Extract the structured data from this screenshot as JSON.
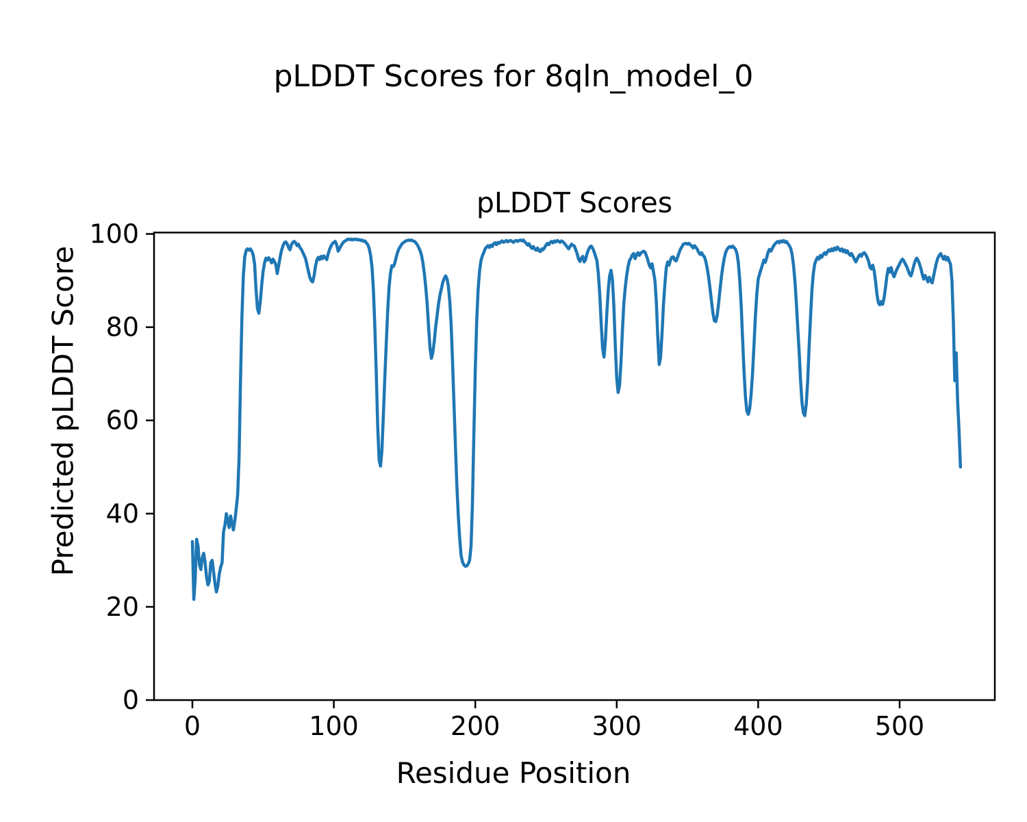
{
  "figure": {
    "suptitle": "pLDDT Scores for 8qln_model_0",
    "background_color": "#ffffff",
    "text_color": "#000000"
  },
  "chart_data": {
    "type": "line",
    "title": "pLDDT Scores",
    "xlabel": "Residue Position",
    "ylabel": "Predicted pLDDT Score",
    "xlim": [
      -27.1,
      567.3
    ],
    "ylim": [
      0,
      100.3
    ],
    "xticks": [
      0,
      100,
      200,
      300,
      400,
      500
    ],
    "yticks": [
      0,
      20,
      40,
      60,
      80,
      100
    ],
    "grid": false,
    "legend": null,
    "series": [
      {
        "name": "pLDDT",
        "color": "#1f77b4",
        "x_start": 0,
        "x_step": 1,
        "y": [
          34,
          21.6,
          26,
          34.5,
          33,
          29,
          28,
          30.5,
          31.5,
          29.5,
          26.5,
          24.7,
          25.5,
          29.5,
          30,
          27.5,
          25,
          23.2,
          24.5,
          27,
          28.5,
          29.5,
          36,
          37.5,
          40,
          38.5,
          37,
          39.5,
          38,
          36.5,
          38.5,
          41,
          44,
          52,
          68,
          82,
          91,
          95,
          96.5,
          96.8,
          96.5,
          96.8,
          96.3,
          95.5,
          93.5,
          88,
          84,
          83,
          85.5,
          89,
          92,
          93.8,
          94.8,
          94.4,
          94.9,
          94.4,
          93.8,
          94.6,
          94.1,
          93.4,
          91.5,
          93.2,
          95,
          96.4,
          97.4,
          98.1,
          98.3,
          97.9,
          97.1,
          96.6,
          97.7,
          98.2,
          98.4,
          98.1,
          97.5,
          97.8,
          97.1,
          96.7,
          96.1,
          95.4,
          94.7,
          93.4,
          92,
          90.7,
          90,
          89.7,
          91,
          93,
          94.4,
          95,
          94.5,
          95.2,
          94.7,
          95.3,
          94.9,
          94.5,
          95.7,
          96.7,
          97.4,
          97.9,
          98.2,
          98.4,
          97.7,
          96.3,
          96.8,
          97.4,
          97.9,
          98.3,
          98.5,
          98.7,
          98.9,
          98.8,
          98.9,
          98.7,
          98.9,
          98.8,
          98.9,
          98.7,
          98.8,
          98.6,
          98.7,
          98.4,
          98.5,
          98.1,
          97.7,
          96.9,
          95.4,
          92.8,
          88,
          80,
          70,
          59,
          51.5,
          50.2,
          53.5,
          61,
          69,
          76,
          83,
          88.5,
          91.5,
          93.2,
          93,
          93.6,
          94.9,
          96,
          96.8,
          97.3,
          97.8,
          98.1,
          98.3,
          98.5,
          98.6,
          98.7,
          98.6,
          98.7,
          98.5,
          98.4,
          98.1,
          97.7,
          97.1,
          96.4,
          95.4,
          93.8,
          91.5,
          88.5,
          85,
          80,
          75.5,
          73.3,
          74.5,
          77,
          80,
          82.5,
          85,
          86.8,
          88.2,
          89.6,
          90.4,
          91,
          90.4,
          88.8,
          85.5,
          80,
          72,
          63,
          54,
          46,
          39.5,
          34.5,
          31,
          29.6,
          29,
          28.7,
          28.8,
          29.2,
          30,
          33,
          42,
          57,
          71,
          81,
          88,
          92,
          94.2,
          95.3,
          96,
          96.8,
          97.2,
          97.5,
          97.1,
          97.6,
          97.3,
          97.9,
          98.1,
          97.7,
          98.2,
          98,
          98.3,
          98.5,
          98.2,
          98.4,
          98.6,
          98.3,
          98.5,
          98.6,
          98.4,
          98.2,
          98.5,
          98.6,
          98.4,
          98.6,
          98.7,
          98.5,
          98.7,
          98.3,
          98,
          97.6,
          97.9,
          97.3,
          96.9,
          97.3,
          96.8,
          96.5,
          97,
          96.4,
          96.2,
          96.8,
          96.6,
          97.1,
          97.6,
          98,
          97.7,
          98.2,
          98.4,
          98.1,
          98.5,
          98.3,
          98.6,
          98.4,
          98.2,
          98.5,
          98.3,
          98,
          97.6,
          97.2,
          96.8,
          97.3,
          97.8,
          97.6,
          97.4,
          96.6,
          95.8,
          94.6,
          94.1,
          94.8,
          95.2,
          94,
          94.5,
          95.8,
          96.6,
          97.2,
          97.4,
          96.9,
          96.2,
          95.2,
          94.3,
          91.5,
          87,
          81,
          75.5,
          73.6,
          77,
          83,
          88,
          91,
          92.2,
          90,
          84.5,
          76,
          69,
          66,
          67.5,
          72.5,
          79,
          85,
          88.5,
          91,
          93,
          94.3,
          94.8,
          95.5,
          95.8,
          94.7,
          95.5,
          96,
          95.4,
          95.9,
          96.1,
          96.3,
          96.1,
          95.3,
          94.4,
          93.3,
          92.7,
          93.6,
          91.8,
          90,
          85.5,
          78,
          72,
          73.5,
          78.5,
          84.5,
          89,
          92.7,
          94,
          93.3,
          94.4,
          95,
          95.1,
          94.4,
          94.2,
          95,
          95.9,
          96.7,
          97.2,
          97.8,
          97.9,
          98,
          97.8,
          98,
          97.7,
          97.4,
          97,
          97.5,
          97.1,
          96.7,
          96,
          95.6,
          96,
          95.4,
          95.1,
          94.1,
          92.6,
          90.6,
          88.2,
          85.6,
          83,
          81.4,
          81.2,
          82.5,
          85,
          88,
          90.8,
          93,
          94.8,
          96,
          96.7,
          97.1,
          97.3,
          97.1,
          97.4,
          97.1,
          96.7,
          95.8,
          93.8,
          90,
          84.5,
          77.5,
          70.5,
          65,
          62,
          61.3,
          62.5,
          65.5,
          70,
          76,
          82,
          87,
          90.3,
          91.4,
          92.4,
          93.4,
          94.4,
          93.9,
          94.9,
          96.1,
          96.7,
          96.3,
          96.9,
          97.5,
          97.9,
          98.2,
          98.4,
          98.1,
          98.5,
          98.3,
          98.6,
          98.2,
          98.4,
          97.9,
          97.5,
          96.9,
          95.6,
          93.3,
          89.8,
          85.3,
          79.8,
          74.5,
          68.5,
          63.8,
          61.5,
          61,
          63.5,
          68.5,
          75.5,
          82,
          88,
          91.5,
          93.6,
          94.4,
          95,
          94.6,
          95.4,
          95,
          95.6,
          96,
          95.6,
          96.2,
          96.6,
          96.3,
          96.8,
          96.4,
          97,
          96.6,
          97.2,
          96.8,
          96.4,
          96.8,
          96.2,
          96.6,
          96,
          96.4,
          95.8,
          95.4,
          95.8,
          95.2,
          94.6,
          94,
          94.6,
          95.2,
          95.6,
          95.2,
          95.8,
          96,
          95.6,
          95,
          94.2,
          92.9,
          92.5,
          93.3,
          92.1,
          89.8,
          87,
          85.2,
          84.8,
          85.5,
          84.9,
          86.2,
          88.5,
          91,
          92.6,
          91.8,
          92.8,
          91.6,
          90.8,
          91.6,
          92.4,
          93,
          93.6,
          94.2,
          94.6,
          94.2,
          93.6,
          93,
          92.2,
          91.4,
          91,
          92,
          93.2,
          94.2,
          94.8,
          94.4,
          93.6,
          92.6,
          91.4,
          90.3,
          91.1,
          90.5,
          89.7,
          90.7,
          89.9,
          89.5,
          90.9,
          92.4,
          93.8,
          94.8,
          95.4,
          95.8,
          95.2,
          94.6,
          95.2,
          94.4,
          95,
          94.2,
          93.5,
          90,
          81,
          68.5,
          74.5,
          64,
          58,
          50
        ]
      }
    ]
  }
}
